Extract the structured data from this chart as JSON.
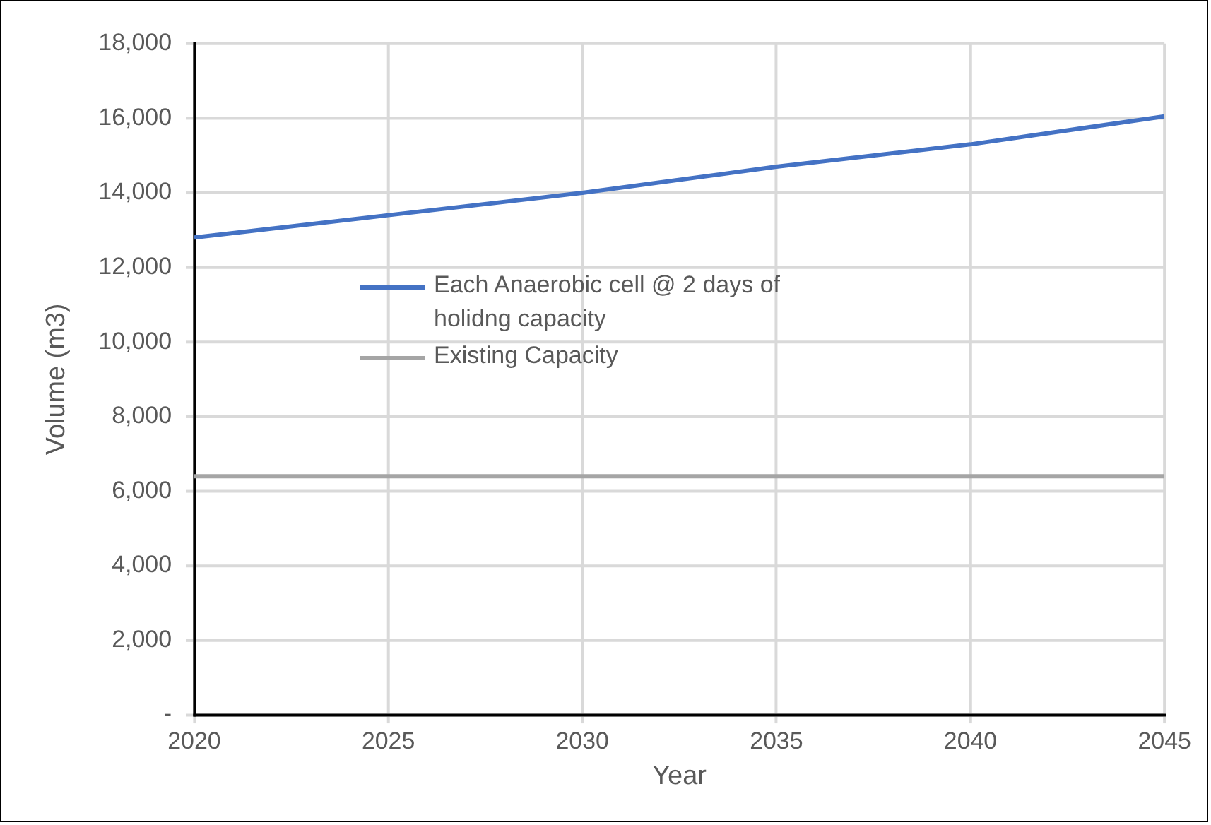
{
  "chart_data": {
    "type": "line",
    "xlabel": "Year",
    "ylabel": "Volume (m3)",
    "x": [
      2020,
      2025,
      2030,
      2035,
      2040,
      2045
    ],
    "series": [
      {
        "name": "Each Anaerobic cell @ 2 days of holidng capacity",
        "color": "#4472c4",
        "values": [
          12800,
          13400,
          14000,
          14700,
          15300,
          16050
        ]
      },
      {
        "name": "Existing Capacity",
        "color": "#a5a5a5",
        "values": [
          6400,
          6400,
          6400,
          6400,
          6400,
          6400
        ]
      }
    ],
    "xlim": [
      2020,
      2045
    ],
    "xticks": [
      2020,
      2025,
      2030,
      2035,
      2040,
      2045
    ],
    "ylim": [
      0,
      18000
    ],
    "yticks": [
      {
        "value": 0,
        "label": "-"
      },
      {
        "value": 2000,
        "label": "2,000"
      },
      {
        "value": 4000,
        "label": "4,000"
      },
      {
        "value": 6000,
        "label": "6,000"
      },
      {
        "value": 8000,
        "label": "8,000"
      },
      {
        "value": 10000,
        "label": "10,000"
      },
      {
        "value": 12000,
        "label": "12,000"
      },
      {
        "value": 14000,
        "label": "14,000"
      },
      {
        "value": 16000,
        "label": "16,000"
      },
      {
        "value": 18000,
        "label": "18,000"
      }
    ],
    "grid": true,
    "legend": "left",
    "marker": "none",
    "line_style": "solid"
  }
}
